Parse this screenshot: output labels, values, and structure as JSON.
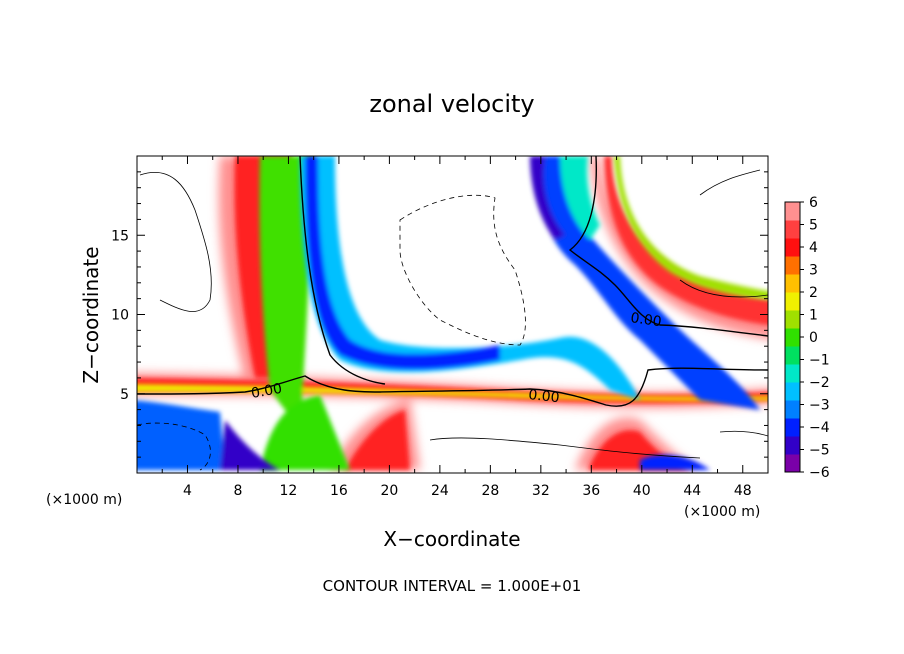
{
  "chart_data": {
    "type": "heatmap",
    "title": "zonal velocity",
    "xlabel": "X−coordinate",
    "ylabel": "Z−coordinate",
    "x_unit_left": "(×1000 m)",
    "x_unit_right": "(×1000 m)",
    "footer": "CONTOUR INTERVAL = 1.000E+01",
    "xlim": [
      0,
      50
    ],
    "ylim": [
      0,
      20
    ],
    "x_ticks": [
      4,
      8,
      12,
      16,
      20,
      24,
      28,
      32,
      36,
      40,
      44,
      48
    ],
    "x_tick_labels": [
      "4",
      "8",
      "12",
      "16",
      "20",
      "24",
      "28",
      "32",
      "36",
      "40",
      "44",
      "48"
    ],
    "y_ticks": [
      5,
      10,
      15
    ],
    "y_tick_labels": [
      "5",
      "10",
      "15"
    ],
    "colorbar": {
      "levels": [
        -6,
        -5,
        -4,
        -3,
        -2,
        -1,
        0,
        1,
        2,
        3,
        4,
        5,
        6
      ],
      "labels": [
        "6",
        "5",
        "4",
        "3",
        "2",
        "1",
        "0",
        "−1",
        "−2",
        "−3",
        "−4",
        "−5",
        "−6"
      ],
      "colors": [
        "#7a00a8",
        "#3200c8",
        "#0020ff",
        "#0080ff",
        "#00c0ff",
        "#00e8c8",
        "#00e060",
        "#30e000",
        "#a0e000",
        "#f0f000",
        "#ffc000",
        "#ff7000",
        "#ff1010",
        "#ff4040",
        "#ff9090"
      ]
    },
    "contour_labels": [
      {
        "text": "0.00",
        "x": 8.5,
        "z": 5.0
      },
      {
        "text": "0.00",
        "x": 33.5,
        "z": 4.6
      },
      {
        "text": "0.00",
        "x": 41,
        "z": 9.6
      }
    ],
    "zero_contour": [
      {
        "x": 0,
        "z": 5.0
      },
      {
        "x": 4,
        "z": 5.0
      },
      {
        "x": 8,
        "z": 5.0
      },
      {
        "x": 12,
        "z": 5.3
      },
      {
        "x": 14.5,
        "z": 6.0
      },
      {
        "x": 18,
        "z": 5.3
      },
      {
        "x": 22,
        "z": 5.1
      },
      {
        "x": 28,
        "z": 5.1
      },
      {
        "x": 33,
        "z": 4.8
      },
      {
        "x": 36,
        "z": 4.6
      },
      {
        "x": 40,
        "z": 6.5
      },
      {
        "x": 44,
        "z": 6.4
      },
      {
        "x": 50,
        "z": 6.2
      }
    ],
    "features": [
      {
        "name": "shear-layer",
        "x": [
          0,
          50
        ],
        "z_center": 5.0,
        "width_km": 2.5
      },
      {
        "name": "vertical-plume-left",
        "x_center": 14,
        "z_range": [
          5,
          20
        ],
        "width_km": 8
      },
      {
        "name": "jet-right",
        "x": [
          32,
          48
        ],
        "z_range": [
          4,
          20
        ]
      }
    ]
  }
}
